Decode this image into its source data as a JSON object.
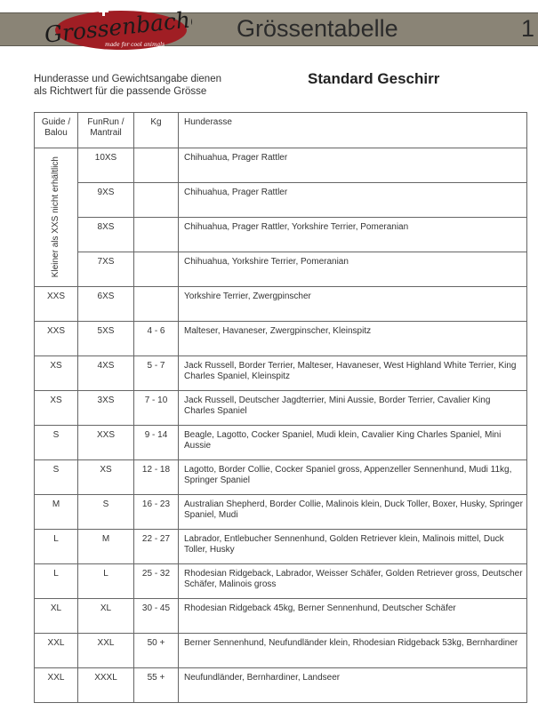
{
  "header": {
    "logo_text": "Grossenbacher",
    "logo_tagline": "made for cool animals",
    "title": "Grössentabelle",
    "page_number": "1",
    "banner_color": "#8a8476",
    "logo_color": "#a01e24"
  },
  "intro": {
    "line1": "Hunderasse und Gewichtsangabe dienen",
    "line2": "als Richtwert für die passende Grösse"
  },
  "subtitle": "Standard Geschirr",
  "table": {
    "headers": [
      "Guide / Balou",
      "FunRun / Mantrail",
      "Kg",
      "Hunderasse"
    ],
    "merged_note": "Kleiner als XXS nicht erhältlich",
    "rows": [
      {
        "guide": "",
        "funrun": "10XS",
        "kg": "",
        "breeds": "Chihuahua, Prager Rattler"
      },
      {
        "guide": "",
        "funrun": "9XS",
        "kg": "",
        "breeds": "Chihuahua, Prager Rattler"
      },
      {
        "guide": "",
        "funrun": "8XS",
        "kg": "",
        "breeds": "Chihuahua, Prager Rattler, Yorkshire Terrier, Pomeranian"
      },
      {
        "guide": "",
        "funrun": "7XS",
        "kg": "",
        "breeds": "Chihuahua, Yorkshire Terrier, Pomeranian"
      },
      {
        "guide": "XXS",
        "funrun": "6XS",
        "kg": "",
        "breeds": "Yorkshire Terrier, Zwergpinscher"
      },
      {
        "guide": "XXS",
        "funrun": "5XS",
        "kg": "4 - 6",
        "breeds": "Malteser, Havaneser, Zwergpinscher, Kleinspitz"
      },
      {
        "guide": "XS",
        "funrun": "4XS",
        "kg": "5 - 7",
        "breeds": "Jack Russell, Border Terrier, Malteser, Havaneser, West Highland White Terrier, King Charles Spaniel, Kleinspitz"
      },
      {
        "guide": "XS",
        "funrun": "3XS",
        "kg": "7 - 10",
        "breeds": "Jack Russell, Deutscher Jagdterrier, Mini Aussie, Border Terrier, Cavalier King Charles Spaniel"
      },
      {
        "guide": "S",
        "funrun": "XXS",
        "kg": "9 - 14",
        "breeds": "Beagle, Lagotto, Cocker Spaniel, Mudi klein, Cavalier King Charles Spaniel, Mini Aussie"
      },
      {
        "guide": "S",
        "funrun": "XS",
        "kg": "12 - 18",
        "breeds": "Lagotto, Border Collie, Cocker Spaniel gross, Appenzeller Sennenhund, Mudi 11kg, Springer Spaniel"
      },
      {
        "guide": "M",
        "funrun": "S",
        "kg": "16 - 23",
        "breeds": "Australian Shepherd, Border Collie, Malinois klein, Duck Toller, Boxer, Husky, Springer Spaniel, Mudi"
      },
      {
        "guide": "L",
        "funrun": "M",
        "kg": "22 - 27",
        "breeds": "Labrador, Entlebucher Sennenhund, Golden Retriever klein, Malinois mittel, Duck Toller, Husky"
      },
      {
        "guide": "L",
        "funrun": "L",
        "kg": "25 - 32",
        "breeds": "Rhodesian Ridgeback, Labrador, Weisser Schäfer, Golden Retriever gross, Deutscher Schäfer, Malinois gross"
      },
      {
        "guide": "XL",
        "funrun": "XL",
        "kg": "30 - 45",
        "breeds": "Rhodesian Ridgeback 45kg, Berner Sennenhund, Deutscher Schäfer"
      },
      {
        "guide": "XXL",
        "funrun": "XXL",
        "kg": "50 +",
        "breeds": "Berner Sennenhund, Neufundländer klein, Rhodesian Ridgeback 53kg, Bernhardiner"
      },
      {
        "guide": "XXL",
        "funrun": "XXXL",
        "kg": "55 +",
        "breeds": "Neufundländer, Bernhardiner, Landseer"
      }
    ]
  }
}
